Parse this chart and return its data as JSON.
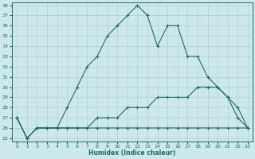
{
  "xlabel": "Humidex (Indice chaleur)",
  "bg_color": "#cce8ea",
  "line_color": "#1e6b65",
  "grid_color": "#b0d0d3",
  "xlim_min": -0.5,
  "xlim_max": 23.5,
  "ylim_min": 25,
  "ylim_max": 38,
  "xticks": [
    0,
    1,
    2,
    3,
    4,
    5,
    6,
    7,
    8,
    9,
    10,
    11,
    12,
    13,
    14,
    15,
    16,
    17,
    18,
    19,
    20,
    21,
    22,
    23
  ],
  "yticks": [
    25,
    26,
    27,
    28,
    29,
    30,
    31,
    32,
    33,
    34,
    35,
    36,
    37,
    38
  ],
  "line_max": [
    27,
    25,
    26,
    26,
    26,
    28,
    30,
    32,
    33,
    35,
    36,
    37,
    38,
    37,
    34,
    36,
    36,
    33,
    33,
    31,
    30,
    29,
    27,
    26
  ],
  "line_mean": [
    27,
    25,
    26,
    26,
    26,
    26,
    26,
    26,
    27,
    27,
    27,
    28,
    28,
    28,
    29,
    29,
    29,
    29,
    30,
    30,
    30,
    29,
    28,
    26
  ],
  "line_min": [
    27,
    25,
    26,
    26,
    26,
    26,
    26,
    26,
    26,
    26,
    26,
    26,
    26,
    26,
    26,
    26,
    26,
    26,
    26,
    26,
    26,
    26,
    26,
    26
  ]
}
